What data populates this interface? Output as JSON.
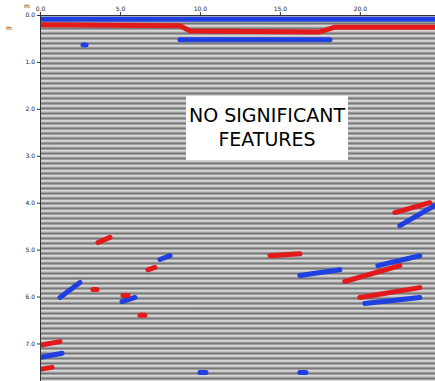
{
  "chart_data": {
    "type": "radargram",
    "x_label": "m",
    "y_label": "m",
    "annotation": [
      "NO SIGNIFICANT",
      "FEATURES"
    ],
    "xlim": [
      0,
      24.7
    ],
    "ylim": [
      0,
      7.8
    ],
    "xticks": [
      {
        "value": 0,
        "label": "0.0"
      },
      {
        "value": 5,
        "label": "5.0"
      },
      {
        "value": 10,
        "label": "10.0"
      },
      {
        "value": 15,
        "label": "15.0"
      },
      {
        "value": 20,
        "label": "20.0"
      }
    ],
    "yticks": [
      {
        "value": 0,
        "label": "0.0"
      },
      {
        "value": 1,
        "label": "1.0"
      },
      {
        "value": 2,
        "label": "2.0"
      },
      {
        "value": 3,
        "label": "3.0"
      },
      {
        "value": 4,
        "label": "4.0"
      },
      {
        "value": 5,
        "label": "5.0"
      },
      {
        "value": 6,
        "label": "6.0"
      },
      {
        "value": 7,
        "label": "7.0"
      }
    ],
    "series": [
      {
        "color": "#1f3fe0",
        "x": [
          0,
          24.69
        ],
        "y": [
          0.09,
          0.09
        ]
      },
      {
        "color": "#1f3fe0",
        "x": [
          8.75,
          18.13
        ],
        "y": [
          0.53,
          0.53
        ]
      },
      {
        "color": "#1f3fe0",
        "x": [
          1.25,
          2.5
        ],
        "y": [
          6.02,
          5.7
        ]
      },
      {
        "color": "#1f3fe0",
        "x": [
          5.13,
          5.94
        ],
        "y": [
          6.11,
          6.02
        ]
      },
      {
        "color": "#1f3fe0",
        "x": [
          7.5,
          8.13
        ],
        "y": [
          5.21,
          5.13
        ]
      },
      {
        "color": "#1f3fe0",
        "x": [
          16.25,
          18.75
        ],
        "y": [
          5.55,
          5.43
        ]
      },
      {
        "color": "#1f3fe0",
        "x": [
          21.13,
          23.75
        ],
        "y": [
          5.34,
          5.13
        ]
      },
      {
        "color": "#1f3fe0",
        "x": [
          22.5,
          24.69
        ],
        "y": [
          4.49,
          4.06
        ]
      },
      {
        "color": "#1f3fe0",
        "x": [
          20.31,
          23.75
        ],
        "y": [
          6.15,
          6.02
        ]
      },
      {
        "color": "#1f3fe0",
        "x": [
          0,
          1.38
        ],
        "y": [
          7.3,
          7.21
        ]
      },
      {
        "color": "#1f3fe0",
        "x": [
          2.69,
          2.88
        ],
        "y": [
          0.64,
          0.64
        ]
      },
      {
        "color": "#1f3fe0",
        "x": [
          10,
          10.38
        ],
        "y": [
          7.62,
          7.62
        ]
      },
      {
        "color": "#1f3fe0",
        "x": [
          16.25,
          16.63
        ],
        "y": [
          7.62,
          7.62
        ]
      },
      {
        "color": "#e31a1c",
        "x": [
          0,
          8.75,
          9.38,
          17.5,
          18.44,
          24.69
        ],
        "y": [
          0.21,
          0.23,
          0.34,
          0.36,
          0.26,
          0.26
        ]
      },
      {
        "color": "#e31a1c",
        "x": [
          3.63,
          4.38
        ],
        "y": [
          4.85,
          4.74
        ]
      },
      {
        "color": "#e31a1c",
        "x": [
          3.31,
          3.56
        ],
        "y": [
          5.85,
          5.85
        ]
      },
      {
        "color": "#e31a1c",
        "x": [
          5.19,
          5.5
        ],
        "y": [
          5.98,
          5.98
        ]
      },
      {
        "color": "#e31a1c",
        "x": [
          6.75,
          7.19
        ],
        "y": [
          5.43,
          5.38
        ]
      },
      {
        "color": "#e31a1c",
        "x": [
          14.38,
          16.25
        ],
        "y": [
          5.13,
          5.09
        ]
      },
      {
        "color": "#e31a1c",
        "x": [
          19.06,
          22.5
        ],
        "y": [
          5.68,
          5.34
        ]
      },
      {
        "color": "#e31a1c",
        "x": [
          22.19,
          24.38
        ],
        "y": [
          4.21,
          4.0
        ]
      },
      {
        "color": "#e31a1c",
        "x": [
          20,
          23.75
        ],
        "y": [
          6.02,
          5.81
        ]
      },
      {
        "color": "#e31a1c",
        "x": [
          0,
          1.25
        ],
        "y": [
          7.04,
          6.96
        ]
      },
      {
        "color": "#e31a1c",
        "x": [
          0,
          0.75
        ],
        "y": [
          7.55,
          7.51
        ]
      },
      {
        "color": "#e31a1c",
        "x": [
          6.25,
          6.56
        ],
        "y": [
          6.4,
          6.4
        ]
      }
    ]
  }
}
